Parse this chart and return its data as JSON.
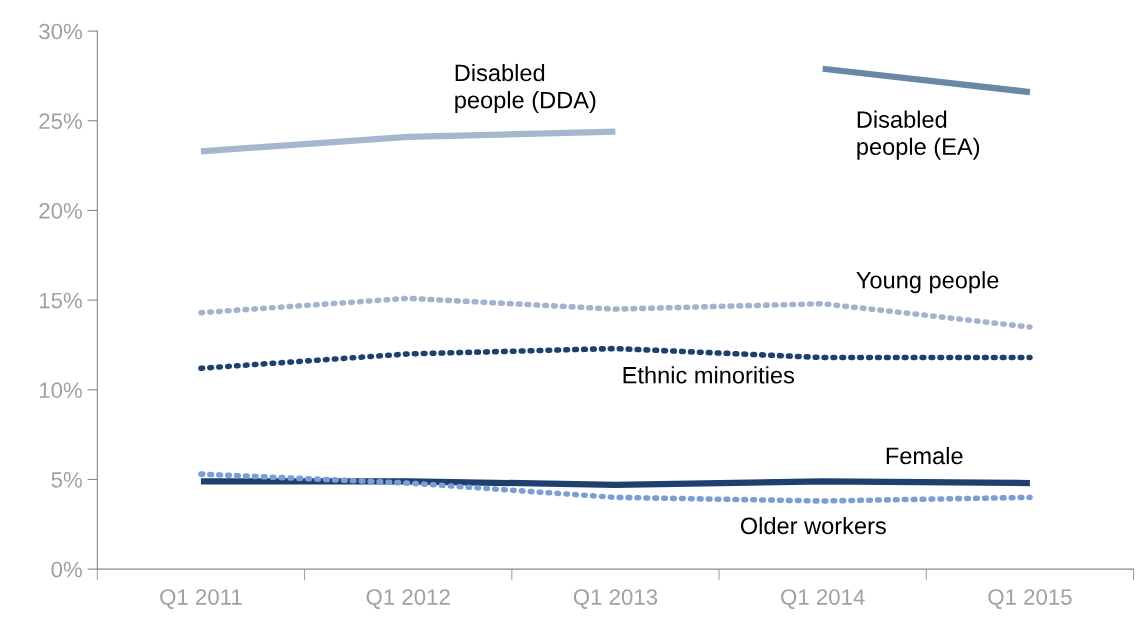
{
  "chart_data": {
    "type": "line",
    "categories": [
      "Q1 2011",
      "Q1 2012",
      "Q1 2013",
      "Q1 2014",
      "Q1 2015"
    ],
    "series": [
      {
        "name": "Disabled\npeople (DDA)",
        "color": "#a6b6cc",
        "line_style": "solid",
        "values": [
          23.3,
          24.1,
          24.4,
          null,
          null
        ]
      },
      {
        "name": "Disabled\npeople (EA)",
        "color": "#6a87a8",
        "line_style": "solid",
        "values": [
          null,
          null,
          null,
          27.9,
          26.6
        ]
      },
      {
        "name": "Young people",
        "color": "#a3b3cc",
        "line_style": "dotted",
        "values": [
          14.3,
          15.1,
          14.5,
          14.8,
          13.5
        ]
      },
      {
        "name": "Ethnic minorities",
        "color": "#1f3f6e",
        "line_style": "dotted",
        "values": [
          11.2,
          12.0,
          12.3,
          11.8,
          11.8
        ]
      },
      {
        "name": "Female",
        "color": "#1f3f6e",
        "line_style": "solid",
        "values": [
          4.9,
          4.9,
          4.7,
          4.9,
          4.8
        ]
      },
      {
        "name": "Older workers",
        "color": "#7b9fd4",
        "line_style": "dotted",
        "values": [
          5.3,
          4.8,
          4.0,
          3.8,
          4.0
        ]
      }
    ],
    "ylim": [
      0,
      30
    ],
    "yticks": [
      {
        "value": 0,
        "label": "0%"
      },
      {
        "value": 5,
        "label": "5%"
      },
      {
        "value": 10,
        "label": "10%"
      },
      {
        "value": 15,
        "label": "15%"
      },
      {
        "value": 20,
        "label": "20%"
      },
      {
        "value": 25,
        "label": "25%"
      },
      {
        "value": 30,
        "label": "30%"
      }
    ],
    "grid": false,
    "legend": false,
    "marker": "none"
  }
}
